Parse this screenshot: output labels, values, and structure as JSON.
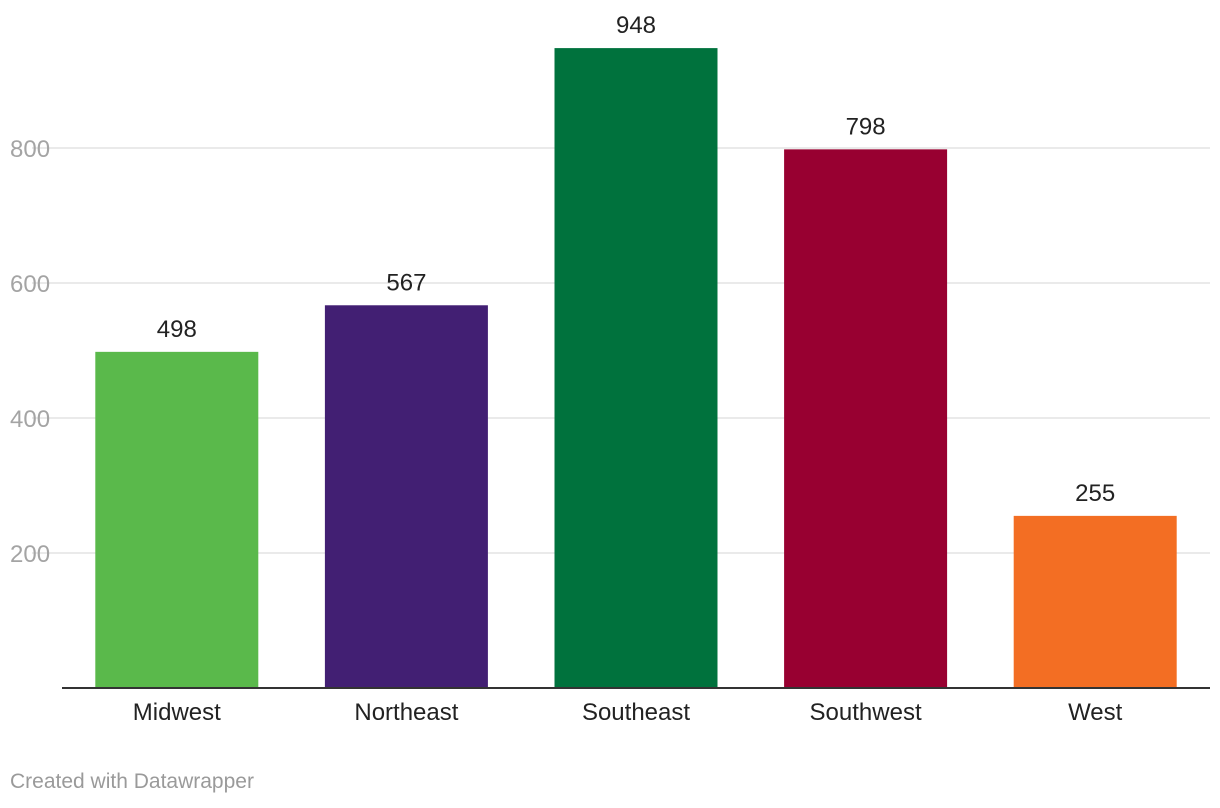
{
  "chart_data": {
    "type": "bar",
    "categories": [
      "Midwest",
      "Northeast",
      "Southeast",
      "Southwest",
      "West"
    ],
    "values": [
      498,
      567,
      948,
      798,
      255
    ],
    "colors": [
      "#5ab94b",
      "#421f73",
      "#00723d",
      "#980031",
      "#f36e23"
    ],
    "title": "",
    "xlabel": "",
    "ylabel": "",
    "ylim": [
      0,
      1000
    ],
    "yticks": [
      200,
      400,
      600,
      800
    ],
    "grid": true,
    "legend": "none"
  },
  "footer": {
    "credit": "Created with Datawrapper"
  }
}
